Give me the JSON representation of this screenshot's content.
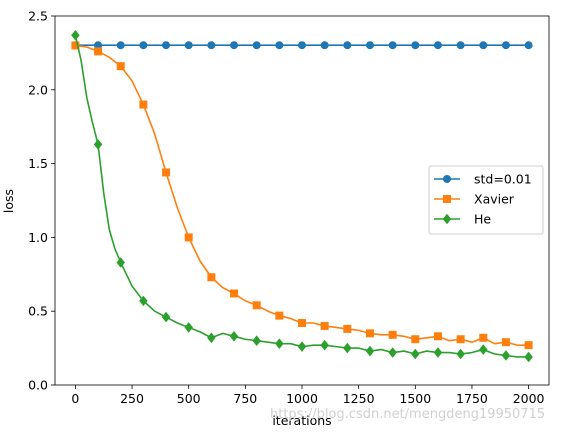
{
  "chart_data": {
    "type": "line",
    "title": "",
    "xlabel": "iterations",
    "ylabel": "loss",
    "xlim": [
      -90,
      2090
    ],
    "ylim": [
      0,
      2.5
    ],
    "xticks": [
      0,
      250,
      500,
      750,
      1000,
      1250,
      1500,
      1750,
      2000
    ],
    "xtick_labels": [
      "0",
      "250",
      "500",
      "750",
      "1000",
      "1250",
      "1500",
      "1750",
      "2000"
    ],
    "yticks": [
      0,
      0.5,
      1.0,
      1.5,
      2.0,
      2.5
    ],
    "ytick_labels": [
      "0.0",
      "0.5",
      "1.0",
      "1.5",
      "2.0",
      "2.5"
    ],
    "grid": false,
    "legend_position": "center-right",
    "series": [
      {
        "name": "std=0.01",
        "color": "#1f77b4",
        "marker": "circle",
        "x": [
          0,
          100,
          200,
          300,
          400,
          500,
          600,
          700,
          800,
          900,
          1000,
          1100,
          1200,
          1300,
          1400,
          1500,
          1600,
          1700,
          1800,
          1900,
          2000
        ],
        "values": [
          2.302,
          2.302,
          2.302,
          2.302,
          2.302,
          2.302,
          2.302,
          2.302,
          2.302,
          2.302,
          2.302,
          2.302,
          2.302,
          2.302,
          2.302,
          2.302,
          2.302,
          2.302,
          2.302,
          2.302,
          2.302
        ]
      },
      {
        "name": "Xavier",
        "color": "#ff7f0e",
        "marker": "square",
        "x": [
          0,
          50,
          100,
          150,
          200,
          250,
          300,
          350,
          400,
          450,
          500,
          550,
          600,
          650,
          700,
          750,
          800,
          850,
          900,
          950,
          1000,
          1050,
          1100,
          1150,
          1200,
          1250,
          1300,
          1350,
          1400,
          1450,
          1500,
          1550,
          1600,
          1650,
          1700,
          1750,
          1800,
          1850,
          1900,
          1950,
          2000
        ],
        "values": [
          2.3,
          2.29,
          2.26,
          2.22,
          2.16,
          2.06,
          1.9,
          1.7,
          1.44,
          1.2,
          1.0,
          0.84,
          0.73,
          0.66,
          0.62,
          0.57,
          0.54,
          0.5,
          0.47,
          0.45,
          0.42,
          0.42,
          0.4,
          0.39,
          0.38,
          0.37,
          0.35,
          0.34,
          0.34,
          0.33,
          0.31,
          0.32,
          0.33,
          0.3,
          0.31,
          0.29,
          0.32,
          0.28,
          0.29,
          0.27,
          0.27
        ]
      },
      {
        "name": "He",
        "color": "#2ca02c",
        "marker": "diamond",
        "x": [
          0,
          25,
          50,
          75,
          100,
          125,
          150,
          175,
          200,
          250,
          300,
          350,
          400,
          450,
          500,
          550,
          600,
          650,
          700,
          750,
          800,
          850,
          900,
          950,
          1000,
          1050,
          1100,
          1150,
          1200,
          1250,
          1300,
          1350,
          1400,
          1450,
          1500,
          1550,
          1600,
          1650,
          1700,
          1750,
          1800,
          1850,
          1900,
          1950,
          2000
        ],
        "values": [
          2.37,
          2.2,
          1.95,
          1.78,
          1.63,
          1.3,
          1.05,
          0.92,
          0.83,
          0.67,
          0.57,
          0.5,
          0.46,
          0.42,
          0.39,
          0.36,
          0.32,
          0.35,
          0.33,
          0.31,
          0.3,
          0.29,
          0.28,
          0.28,
          0.26,
          0.27,
          0.27,
          0.26,
          0.25,
          0.25,
          0.23,
          0.24,
          0.22,
          0.23,
          0.21,
          0.23,
          0.22,
          0.22,
          0.21,
          0.22,
          0.24,
          0.21,
          0.2,
          0.19,
          0.19
        ]
      }
    ]
  },
  "watermark": "https://blog.csdn.net/mengdeng19950715"
}
